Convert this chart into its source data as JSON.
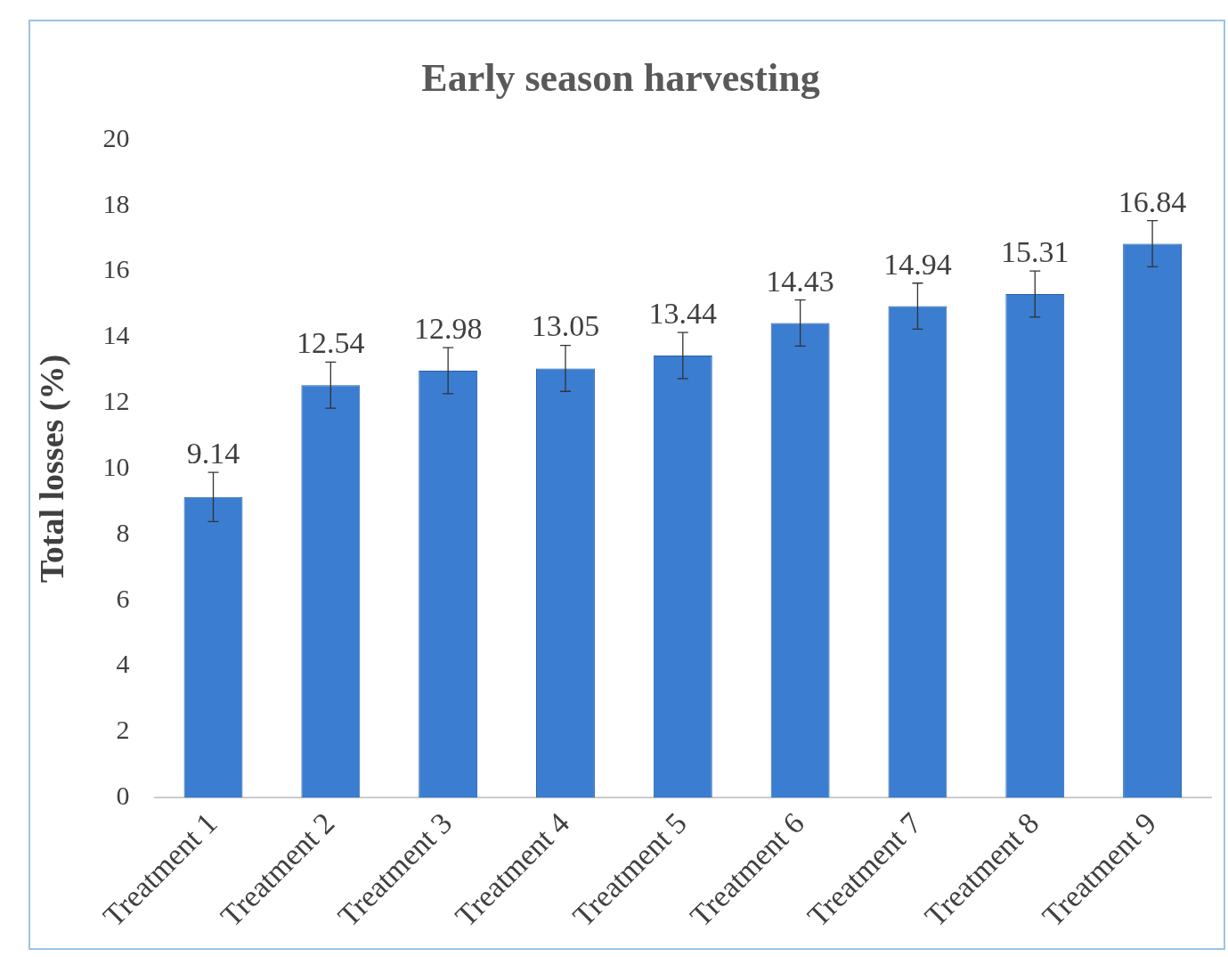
{
  "chart_data": {
    "type": "bar",
    "title": "Early season harvesting",
    "ylabel": "Total losses (%)",
    "categories": [
      "Treatment 1",
      "Treatment 2",
      "Treatment 3",
      "Treatment 4",
      "Treatment 5",
      "Treatment 6",
      "Treatment 7",
      "Treatment 8",
      "Treatment 9"
    ],
    "values": [
      9.14,
      12.54,
      12.98,
      13.05,
      13.44,
      14.43,
      14.94,
      15.31,
      16.84
    ],
    "errors": [
      0.75,
      0.7,
      0.7,
      0.7,
      0.7,
      0.7,
      0.7,
      0.7,
      0.7
    ],
    "color": "#3b7dd0",
    "ylim": [
      0,
      20
    ],
    "yticks": [
      0,
      2,
      4,
      6,
      8,
      10,
      12,
      14,
      16,
      18,
      20
    ],
    "data_labels": true
  }
}
